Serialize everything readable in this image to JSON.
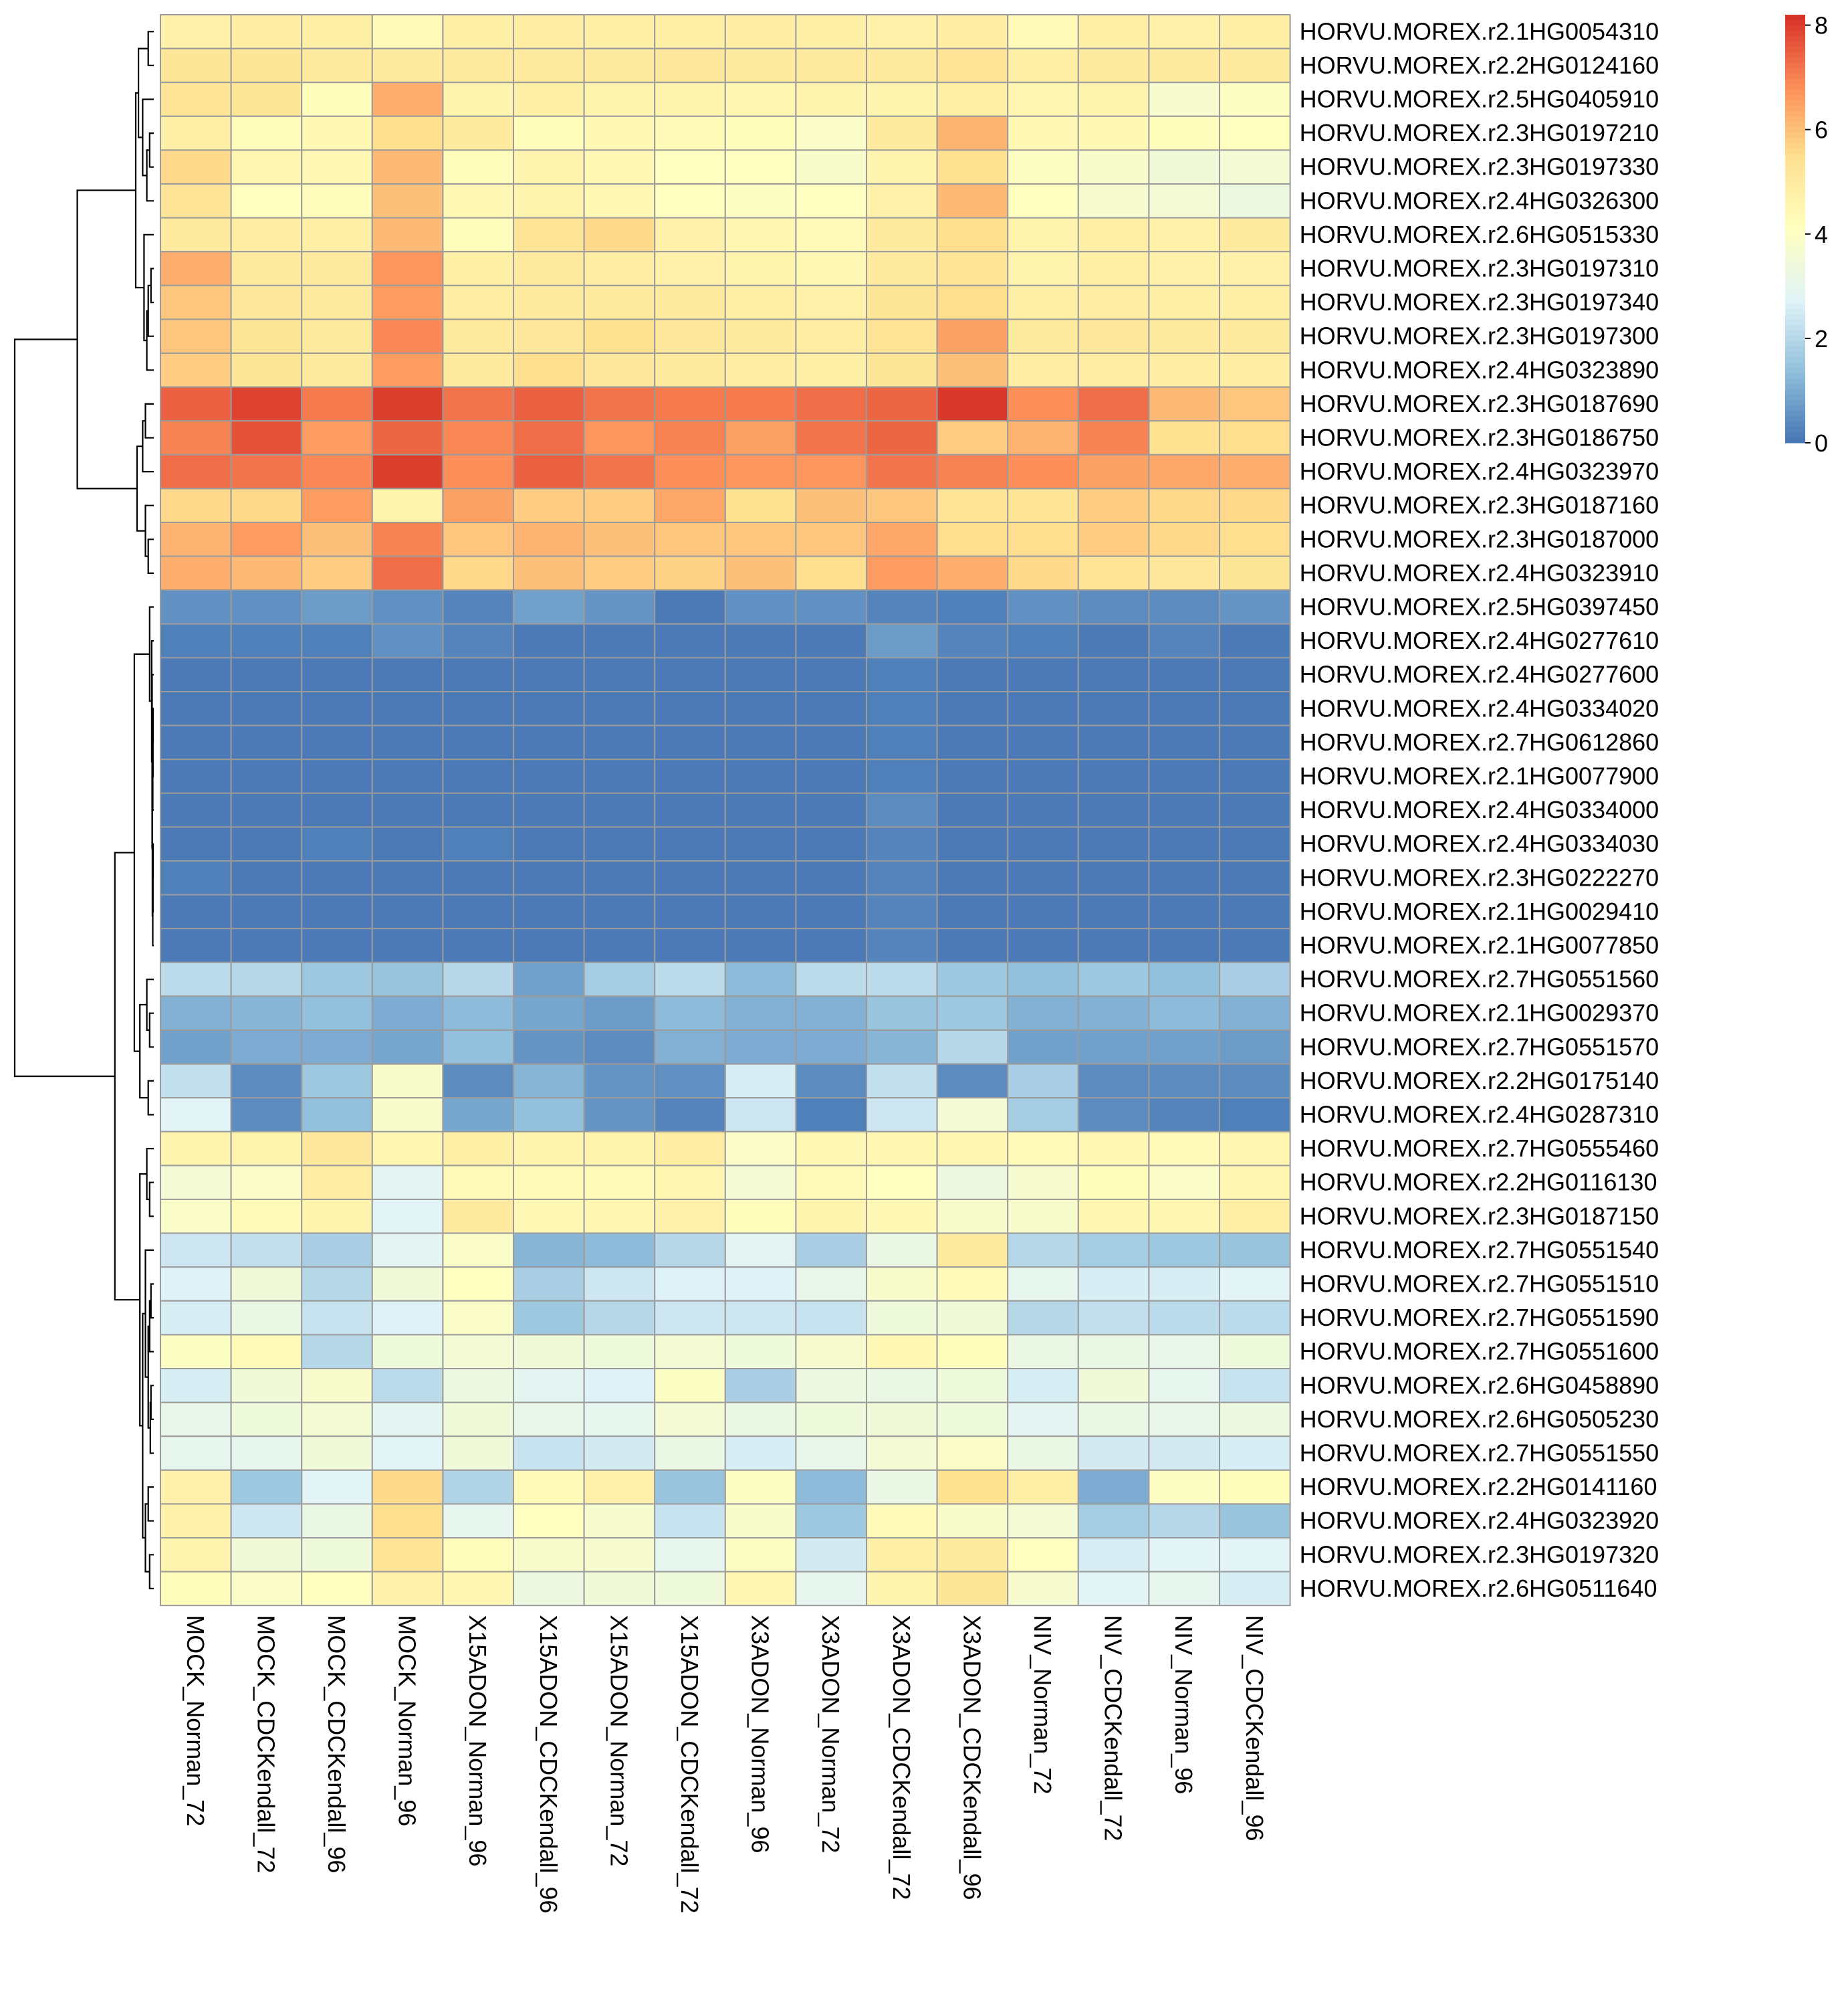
{
  "chart_data": {
    "type": "heatmap",
    "title": "",
    "xlabel": "",
    "ylabel": "",
    "colorbar": {
      "ticks": [
        "0",
        "2",
        "4",
        "6",
        "8"
      ],
      "range": [
        0,
        8.2
      ],
      "colors": [
        "#4575B4",
        "#91BFDB",
        "#E0F3F8",
        "#FFFFBF",
        "#FEE090",
        "#FC8D59",
        "#D73027"
      ]
    },
    "columns": [
      "MOCK_Norman_72",
      "MOCK_CDCKendall_72",
      "MOCK_CDCKendall_96",
      "MOCK_Norman_96",
      "X15ADON_Norman_96",
      "X15ADON_CDCKendall_96",
      "X15ADON_Norman_72",
      "X15ADON_CDCKendall_72",
      "X3ADON_Norman_96",
      "X3ADON_Norman_72",
      "X3ADON_CDCKendall_72",
      "X3ADON_CDCKendall_96",
      "NIV_Norman_72",
      "NIV_CDCKendall_72",
      "NIV_Norman_96",
      "NIV_CDCKendall_96"
    ],
    "rows": [
      "HORVU.MOREX.r2.1HG0054310",
      "HORVU.MOREX.r2.2HG0124160",
      "HORVU.MOREX.r2.5HG0405910",
      "HORVU.MOREX.r2.3HG0197210",
      "HORVU.MOREX.r2.3HG0197330",
      "HORVU.MOREX.r2.4HG0326300",
      "HORVU.MOREX.r2.6HG0515330",
      "HORVU.MOREX.r2.3HG0197310",
      "HORVU.MOREX.r2.3HG0197340",
      "HORVU.MOREX.r2.3HG0197300",
      "HORVU.MOREX.r2.4HG0323890",
      "HORVU.MOREX.r2.3HG0187690",
      "HORVU.MOREX.r2.3HG0186750",
      "HORVU.MOREX.r2.4HG0323970",
      "HORVU.MOREX.r2.3HG0187160",
      "HORVU.MOREX.r2.3HG0187000",
      "HORVU.MOREX.r2.4HG0323910",
      "HORVU.MOREX.r2.5HG0397450",
      "HORVU.MOREX.r2.4HG0277610",
      "HORVU.MOREX.r2.4HG0277600",
      "HORVU.MOREX.r2.4HG0334020",
      "HORVU.MOREX.r2.7HG0612860",
      "HORVU.MOREX.r2.1HG0077900",
      "HORVU.MOREX.r2.4HG0334000",
      "HORVU.MOREX.r2.4HG0334030",
      "HORVU.MOREX.r2.3HG0222270",
      "HORVU.MOREX.r2.1HG0029410",
      "HORVU.MOREX.r2.1HG0077850",
      "HORVU.MOREX.r2.7HG0551560",
      "HORVU.MOREX.r2.1HG0029370",
      "HORVU.MOREX.r2.7HG0551570",
      "HORVU.MOREX.r2.2HG0175140",
      "HORVU.MOREX.r2.4HG0287310",
      "HORVU.MOREX.r2.7HG0555460",
      "HORVU.MOREX.r2.2HG0116130",
      "HORVU.MOREX.r2.3HG0187150",
      "HORVU.MOREX.r2.7HG0551540",
      "HORVU.MOREX.r2.7HG0551510",
      "HORVU.MOREX.r2.7HG0551590",
      "HORVU.MOREX.r2.7HG0551600",
      "HORVU.MOREX.r2.6HG0458890",
      "HORVU.MOREX.r2.6HG0505230",
      "HORVU.MOREX.r2.7HG0551550",
      "HORVU.MOREX.r2.2HG0141160",
      "HORVU.MOREX.r2.4HG0323920",
      "HORVU.MOREX.r2.3HG0197320",
      "HORVU.MOREX.r2.6HG0511640"
    ],
    "values": [
      [
        4.7,
        4.9,
        4.8,
        4.3,
        4.8,
        4.9,
        4.8,
        4.8,
        4.9,
        4.8,
        4.7,
        4.9,
        4.3,
        4.8,
        4.7,
        4.8
      ],
      [
        5.2,
        5.2,
        5.0,
        5.0,
        5.0,
        5.0,
        5.0,
        5.1,
        5.0,
        5.0,
        5.0,
        5.3,
        4.8,
        5.0,
        5.0,
        5.0
      ],
      [
        5.3,
        5.2,
        4.2,
        6.3,
        4.6,
        4.8,
        4.6,
        4.6,
        4.5,
        4.6,
        4.6,
        4.8,
        4.5,
        4.6,
        3.7,
        4.0
      ],
      [
        4.8,
        4.2,
        4.4,
        5.5,
        5.0,
        4.2,
        4.4,
        4.3,
        4.2,
        3.9,
        5.0,
        6.2,
        4.4,
        4.4,
        4.2,
        4.1
      ],
      [
        5.6,
        4.5,
        4.4,
        6.1,
        4.2,
        4.6,
        4.4,
        4.1,
        4.1,
        3.8,
        4.6,
        5.4,
        4.0,
        3.8,
        3.5,
        3.6
      ],
      [
        5.3,
        4.1,
        4.2,
        6.0,
        4.4,
        4.6,
        4.4,
        4.1,
        4.0,
        4.1,
        4.7,
        6.1,
        4.1,
        3.7,
        3.6,
        3.3
      ],
      [
        5.0,
        4.9,
        4.8,
        6.1,
        4.2,
        5.3,
        5.6,
        4.7,
        4.5,
        4.3,
        5.0,
        5.5,
        4.6,
        4.8,
        4.7,
        5.0
      ],
      [
        6.3,
        5.0,
        5.0,
        6.7,
        4.8,
        5.0,
        4.9,
        4.7,
        4.6,
        4.4,
        5.0,
        5.3,
        4.6,
        4.8,
        4.7,
        4.7
      ],
      [
        5.9,
        5.1,
        5.0,
        6.6,
        4.9,
        5.0,
        5.0,
        5.0,
        4.8,
        4.7,
        5.2,
        5.5,
        4.8,
        4.9,
        4.8,
        4.8
      ],
      [
        5.9,
        5.2,
        5.0,
        6.9,
        5.0,
        5.1,
        5.4,
        5.1,
        5.0,
        4.9,
        5.3,
        6.5,
        5.0,
        5.1,
        5.0,
        5.0
      ],
      [
        5.8,
        5.2,
        5.0,
        6.6,
        5.0,
        5.5,
        5.1,
        5.0,
        4.9,
        4.8,
        5.2,
        6.0,
        4.9,
        4.9,
        4.9,
        4.9
      ],
      [
        7.5,
        7.9,
        7.1,
        8.0,
        7.2,
        7.5,
        7.2,
        7.1,
        7.1,
        7.3,
        7.4,
        8.1,
        6.8,
        7.3,
        6.1,
        5.9
      ],
      [
        7.0,
        7.7,
        6.6,
        7.4,
        6.9,
        7.3,
        6.7,
        7.0,
        6.5,
        7.2,
        7.4,
        5.8,
        6.2,
        7.0,
        5.4,
        5.5
      ],
      [
        7.3,
        7.2,
        6.9,
        8.0,
        6.8,
        7.5,
        7.2,
        6.8,
        6.7,
        6.7,
        7.2,
        7.0,
        6.8,
        6.5,
        6.4,
        6.3
      ],
      [
        5.6,
        5.6,
        6.6,
        4.6,
        6.5,
        5.8,
        5.8,
        6.4,
        5.4,
        6.0,
        5.9,
        5.3,
        5.3,
        5.8,
        5.6,
        5.6
      ],
      [
        6.2,
        6.6,
        6.0,
        7.0,
        5.9,
        6.2,
        6.0,
        5.9,
        5.9,
        5.9,
        6.4,
        5.5,
        5.5,
        5.8,
        5.6,
        5.5
      ],
      [
        6.3,
        6.1,
        5.8,
        7.3,
        5.6,
        6.0,
        5.8,
        5.7,
        6.0,
        5.5,
        6.6,
        6.3,
        5.6,
        5.3,
        5.1,
        5.2
      ],
      [
        0.5,
        0.5,
        0.7,
        0.5,
        0.3,
        0.8,
        0.6,
        0.1,
        0.5,
        0.5,
        0.3,
        0.2,
        0.5,
        0.4,
        0.4,
        0.6
      ],
      [
        0.2,
        0.2,
        0.2,
        0.5,
        0.3,
        0.1,
        0.1,
        0.1,
        0.1,
        0.1,
        0.7,
        0.3,
        0.2,
        0.1,
        0.3,
        0.1
      ],
      [
        0.1,
        0.1,
        0.1,
        0.1,
        0.1,
        0.1,
        0.1,
        0.1,
        0.1,
        0.1,
        0.2,
        0.1,
        0.1,
        0.1,
        0.1,
        0.1
      ],
      [
        0.1,
        0.1,
        0.1,
        0.1,
        0.1,
        0.1,
        0.1,
        0.1,
        0.1,
        0.1,
        0.2,
        0.1,
        0.1,
        0.1,
        0.1,
        0.1
      ],
      [
        0.1,
        0.1,
        0.1,
        0.1,
        0.1,
        0.1,
        0.1,
        0.1,
        0.1,
        0.1,
        0.2,
        0.1,
        0.1,
        0.1,
        0.1,
        0.1
      ],
      [
        0.1,
        0.1,
        0.1,
        0.1,
        0.1,
        0.1,
        0.1,
        0.1,
        0.1,
        0.1,
        0.2,
        0.1,
        0.1,
        0.1,
        0.1,
        0.1
      ],
      [
        0.1,
        0.1,
        0.1,
        0.1,
        0.1,
        0.1,
        0.1,
        0.1,
        0.1,
        0.1,
        0.4,
        0.1,
        0.1,
        0.1,
        0.1,
        0.1
      ],
      [
        0.1,
        0.1,
        0.2,
        0.1,
        0.2,
        0.1,
        0.1,
        0.1,
        0.1,
        0.1,
        0.3,
        0.1,
        0.1,
        0.1,
        0.1,
        0.1
      ],
      [
        0.2,
        0.1,
        0.1,
        0.1,
        0.1,
        0.1,
        0.1,
        0.1,
        0.1,
        0.1,
        0.3,
        0.1,
        0.1,
        0.1,
        0.1,
        0.1
      ],
      [
        0.1,
        0.1,
        0.1,
        0.1,
        0.1,
        0.1,
        0.1,
        0.1,
        0.1,
        0.1,
        0.3,
        0.1,
        0.1,
        0.1,
        0.1,
        0.1
      ],
      [
        0.1,
        0.1,
        0.1,
        0.1,
        0.1,
        0.1,
        0.1,
        0.1,
        0.1,
        0.1,
        0.3,
        0.1,
        0.1,
        0.1,
        0.1,
        0.1
      ],
      [
        2.1,
        2.0,
        1.6,
        1.5,
        2.0,
        0.8,
        1.7,
        2.1,
        1.3,
        2.1,
        2.1,
        1.6,
        1.4,
        1.6,
        1.4,
        1.8
      ],
      [
        1.1,
        1.2,
        1.4,
        1.0,
        1.3,
        0.9,
        0.7,
        1.3,
        1.1,
        1.1,
        1.5,
        1.6,
        1.1,
        1.1,
        1.3,
        1.1
      ],
      [
        0.8,
        1.0,
        1.0,
        0.9,
        1.4,
        0.6,
        0.4,
        1.1,
        1.0,
        1.0,
        1.2,
        2.0,
        0.8,
        0.8,
        0.8,
        0.7
      ],
      [
        2.2,
        0.4,
        1.6,
        3.8,
        0.4,
        1.2,
        0.6,
        0.5,
        2.6,
        0.4,
        2.2,
        0.4,
        1.8,
        0.4,
        0.4,
        0.4
      ],
      [
        2.8,
        0.4,
        1.4,
        3.8,
        0.9,
        1.4,
        0.6,
        0.3,
        2.4,
        0.2,
        2.4,
        3.6,
        1.7,
        0.4,
        0.3,
        0.2
      ],
      [
        4.6,
        4.6,
        5.1,
        4.5,
        4.8,
        4.6,
        4.6,
        4.9,
        3.9,
        4.4,
        4.5,
        4.5,
        4.3,
        4.4,
        4.3,
        4.5
      ],
      [
        3.6,
        3.9,
        4.9,
        2.9,
        4.3,
        4.3,
        4.3,
        4.5,
        3.6,
        4.3,
        4.1,
        3.3,
        3.7,
        4.2,
        3.9,
        4.5
      ],
      [
        3.9,
        4.3,
        4.6,
        2.8,
        5.0,
        4.4,
        4.5,
        4.7,
        4.2,
        4.6,
        4.4,
        3.8,
        3.8,
        4.5,
        4.5,
        4.8
      ],
      [
        2.4,
        2.2,
        1.8,
        2.9,
        3.9,
        1.2,
        1.3,
        2.0,
        2.9,
        1.8,
        3.2,
        5.0,
        2.0,
        1.7,
        1.6,
        1.5
      ],
      [
        2.7,
        3.5,
        2.0,
        3.5,
        4.1,
        1.8,
        2.4,
        2.7,
        2.7,
        3.1,
        3.8,
        4.3,
        3.0,
        2.6,
        2.6,
        2.8
      ],
      [
        2.6,
        3.2,
        2.3,
        2.7,
        3.9,
        1.6,
        2.0,
        2.4,
        2.4,
        2.3,
        3.4,
        3.5,
        2.0,
        2.2,
        2.1,
        2.1
      ],
      [
        4.0,
        4.3,
        2.0,
        3.4,
        3.6,
        3.5,
        3.4,
        3.6,
        3.4,
        3.7,
        4.4,
        4.2,
        3.2,
        3.2,
        3.1,
        3.4
      ],
      [
        2.6,
        3.5,
        3.8,
        2.1,
        3.3,
        2.9,
        2.7,
        4.0,
        1.8,
        3.3,
        3.2,
        3.4,
        2.6,
        3.5,
        3.0,
        2.3
      ],
      [
        3.1,
        3.4,
        3.6,
        2.9,
        3.5,
        3.1,
        3.0,
        3.6,
        3.2,
        3.4,
        3.5,
        3.4,
        2.9,
        3.2,
        3.1,
        3.3
      ],
      [
        3.0,
        3.0,
        3.5,
        2.8,
        3.5,
        2.3,
        2.5,
        3.2,
        2.6,
        3.1,
        3.6,
        3.9,
        3.2,
        2.5,
        2.5,
        2.6
      ],
      [
        4.7,
        1.6,
        2.8,
        5.6,
        1.9,
        4.3,
        4.7,
        1.5,
        4.0,
        1.3,
        3.2,
        5.4,
        4.8,
        1.0,
        4.0,
        4.2
      ],
      [
        4.7,
        2.4,
        3.2,
        5.5,
        3.0,
        4.1,
        3.7,
        2.3,
        3.8,
        1.6,
        4.3,
        3.8,
        3.6,
        1.7,
        2.0,
        1.5
      ],
      [
        4.6,
        3.5,
        3.4,
        5.3,
        4.2,
        3.8,
        3.7,
        3.0,
        4.0,
        2.5,
        4.8,
        5.0,
        4.1,
        2.6,
        2.8,
        2.8
      ],
      [
        4.2,
        3.9,
        4.1,
        4.7,
        4.5,
        3.3,
        3.5,
        3.4,
        4.5,
        3.0,
        4.6,
        5.2,
        3.7,
        2.8,
        3.0,
        2.6
      ]
    ]
  }
}
